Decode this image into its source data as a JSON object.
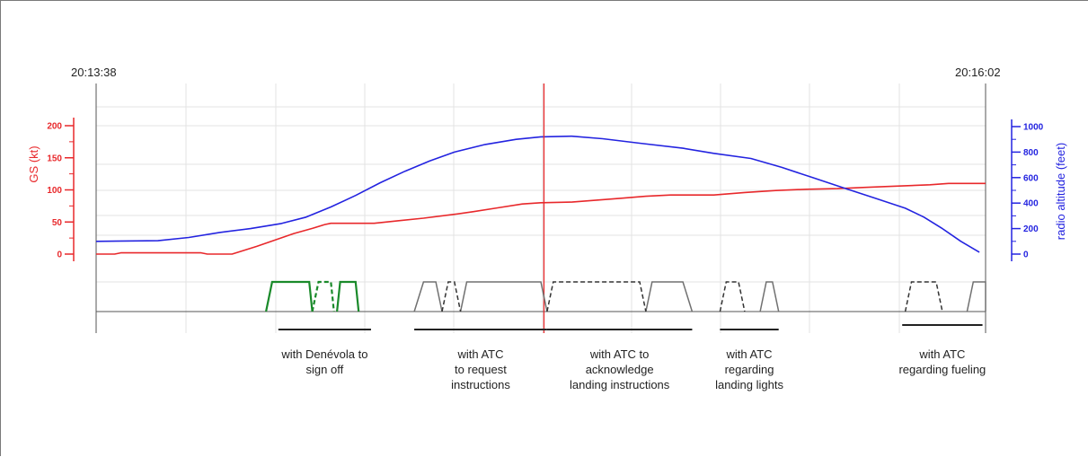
{
  "chart_data": {
    "type": "line",
    "time_start": "20:13:38",
    "time_end": "20:16:02",
    "left_axis": {
      "title": "GS (kt)",
      "ticks": [
        "0",
        "50",
        "100",
        "150",
        "200"
      ],
      "ylim": [
        0,
        200
      ],
      "color": "#e8282b"
    },
    "right_axis": {
      "title": "radio altitude (feet)",
      "ticks": [
        "0",
        "200",
        "400",
        "600",
        "800",
        "1000"
      ],
      "ylim": [
        0,
        1000
      ],
      "color": "#2323e0"
    },
    "x_range_seconds": [
      0,
      144
    ],
    "series": [
      {
        "color": "#e8282b",
        "axis": "left",
        "points": [
          [
            0,
            0
          ],
          [
            3,
            0
          ],
          [
            4,
            2
          ],
          [
            17,
            2
          ],
          [
            18,
            0
          ],
          [
            22,
            0
          ],
          [
            23,
            3
          ],
          [
            26,
            12
          ],
          [
            29,
            22
          ],
          [
            32,
            32
          ],
          [
            35,
            40
          ],
          [
            37,
            46
          ],
          [
            38,
            48
          ],
          [
            45,
            48
          ],
          [
            49,
            52
          ],
          [
            53,
            56
          ],
          [
            58,
            62
          ],
          [
            61,
            66
          ],
          [
            65,
            72
          ],
          [
            69,
            78
          ],
          [
            72,
            80
          ],
          [
            77,
            81
          ],
          [
            81,
            84
          ],
          [
            85,
            87
          ],
          [
            89,
            90
          ],
          [
            93,
            92
          ],
          [
            100,
            92
          ],
          [
            105,
            96
          ],
          [
            110,
            99
          ],
          [
            115,
            101
          ],
          [
            120,
            102
          ],
          [
            125,
            104
          ],
          [
            130,
            106
          ],
          [
            135,
            108
          ],
          [
            138,
            110
          ],
          [
            144,
            110
          ]
        ]
      },
      {
        "color": "#2323e0",
        "axis": "right",
        "points": [
          [
            0,
            100
          ],
          [
            10,
            105
          ],
          [
            15,
            130
          ],
          [
            20,
            170
          ],
          [
            25,
            200
          ],
          [
            30,
            240
          ],
          [
            34,
            290
          ],
          [
            38,
            370
          ],
          [
            42,
            460
          ],
          [
            46,
            560
          ],
          [
            50,
            650
          ],
          [
            54,
            730
          ],
          [
            58,
            800
          ],
          [
            63,
            860
          ],
          [
            68,
            900
          ],
          [
            72,
            920
          ],
          [
            77,
            925
          ],
          [
            82,
            905
          ],
          [
            88,
            870
          ],
          [
            95,
            830
          ],
          [
            100,
            790
          ],
          [
            106,
            750
          ],
          [
            111,
            680
          ],
          [
            116,
            600
          ],
          [
            121,
            520
          ],
          [
            126,
            440
          ],
          [
            131,
            360
          ],
          [
            134,
            290
          ],
          [
            137,
            200
          ],
          [
            140,
            100
          ],
          [
            143,
            15
          ]
        ]
      }
    ],
    "cursor_time_s": 72.5,
    "comm_traces": [
      {
        "color": "#1a8a2a",
        "style": "solid",
        "segments": [
          [
            27.5,
            28.5,
            34.5,
            35
          ]
        ]
      },
      {
        "color": "#1a8a2a",
        "style": "dashed",
        "segments": [
          [
            35,
            36,
            38,
            38.5
          ]
        ]
      },
      {
        "color": "#1a8a2a",
        "style": "solid",
        "segments": [
          [
            39,
            39.5,
            42,
            42.5
          ]
        ]
      },
      {
        "color": "#707070",
        "style": "solid",
        "segments": [
          [
            51.5,
            53,
            55,
            56
          ],
          [
            59,
            60,
            72,
            73
          ],
          [
            89,
            90,
            95,
            96.5
          ],
          [
            107.5,
            108.5,
            109.5,
            110.5
          ],
          [
            141,
            142,
            144,
            144
          ]
        ]
      },
      {
        "color": "#333333",
        "style": "dashed",
        "segments": [
          [
            56,
            57,
            58,
            59
          ],
          [
            73,
            74,
            88,
            89
          ],
          [
            101,
            102,
            104,
            105
          ],
          [
            131,
            132,
            136,
            137
          ]
        ]
      }
    ],
    "annotations": [
      {
        "text": [
          "with Denévola to",
          "sign off"
        ],
        "span": [
          29.5,
          44.5
        ]
      },
      {
        "text": [
          "with ATC",
          "to request",
          "instructions"
        ],
        "span": [
          51.5,
          73
        ]
      },
      {
        "text": [
          "with ATC to",
          "acknowledge",
          "landing instructions"
        ],
        "span": [
          73,
          96.5
        ]
      },
      {
        "text": [
          "with ATC",
          "regarding",
          "landing lights"
        ],
        "span": [
          101,
          110.5
        ]
      },
      {
        "text": [
          "with ATC",
          "regarding fueling"
        ],
        "span": [
          130.5,
          143.5
        ]
      }
    ]
  }
}
